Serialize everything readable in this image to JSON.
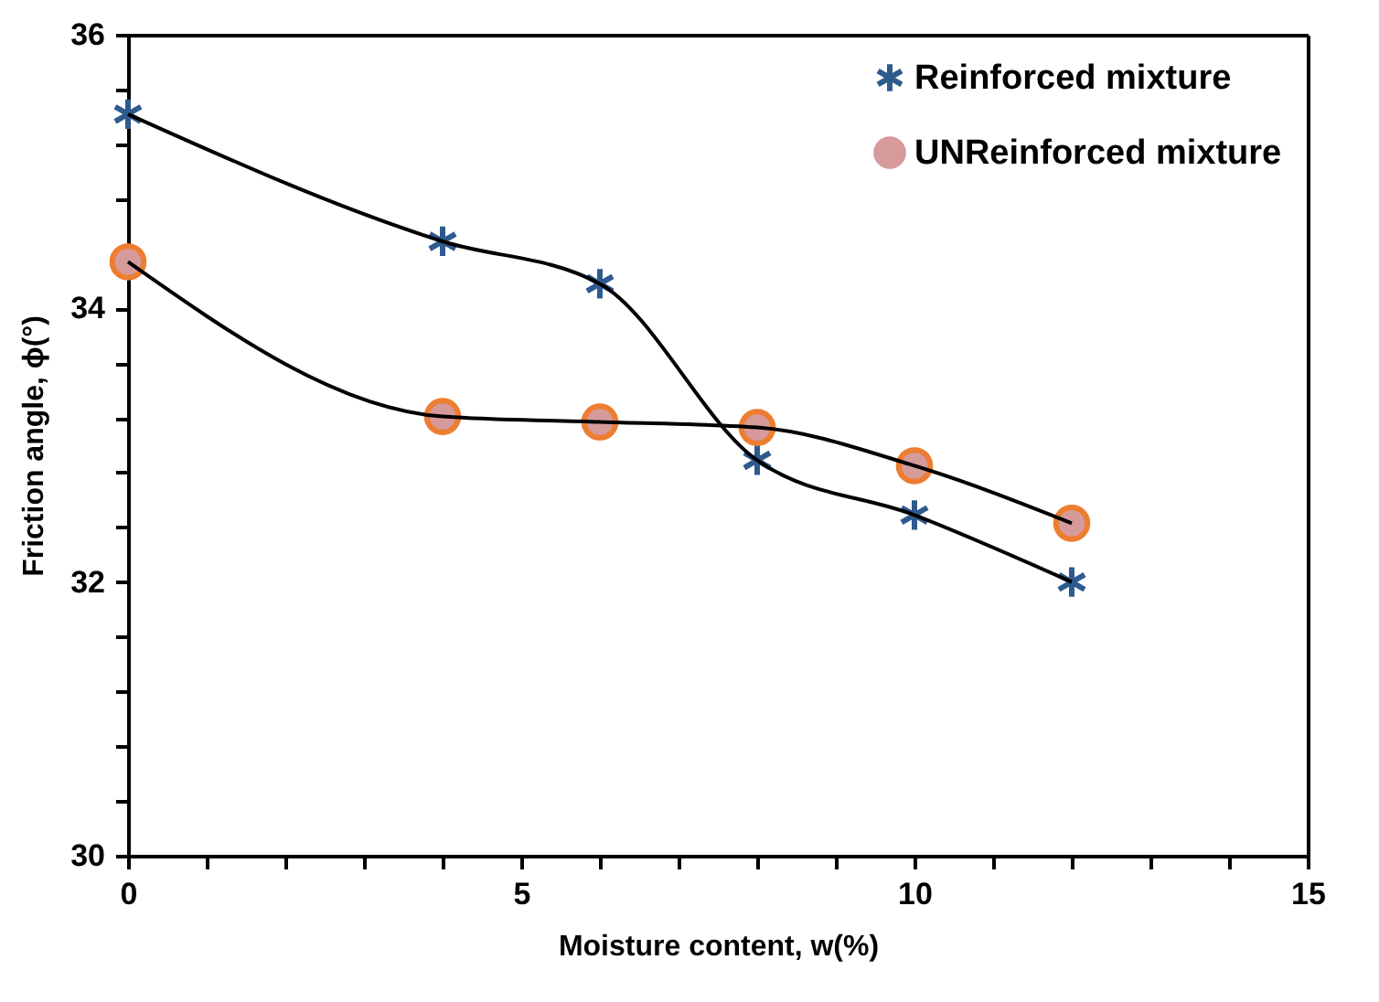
{
  "chart_data": {
    "type": "line",
    "xlabel": "Moisture content, w(%)",
    "ylabel": "Friction angle, ϕ(°)",
    "x": [
      0,
      4,
      6,
      8,
      10,
      12
    ],
    "series": [
      {
        "name": "Reinforced mixture",
        "color": "#2e5a8e",
        "marker": "cross",
        "values": [
          35.42,
          34.49,
          34.18,
          32.89,
          32.49,
          32.0
        ]
      },
      {
        "name": "UNReinforced mixture",
        "color": "#d69a9a",
        "marker": "circle",
        "values": [
          34.34,
          33.21,
          33.17,
          33.13,
          32.85,
          32.43
        ]
      }
    ],
    "xlim": [
      0,
      15
    ],
    "ylim": [
      30,
      36
    ],
    "xticks": [
      0,
      {
        "value": 1,
        "label": null
      },
      {
        "value": 2,
        "label": null
      },
      {
        "value": 3,
        "label": null
      },
      {
        "value": 4,
        "label": null
      },
      5,
      {
        "value": 6,
        "label": null
      },
      {
        "value": 7,
        "label": null
      },
      {
        "value": 8,
        "label": null
      },
      {
        "value": 9,
        "label": null
      },
      10,
      {
        "value": 11,
        "label": null
      },
      {
        "value": 12,
        "label": null
      },
      {
        "value": 13,
        "label": null
      },
      {
        "value": 14,
        "label": null
      },
      15
    ],
    "yticks": [
      30,
      {
        "value": 30.4,
        "label": null
      },
      {
        "value": 30.8,
        "label": null
      },
      {
        "value": 31.2,
        "label": null
      },
      {
        "value": 31.6,
        "label": null
      },
      32,
      {
        "value": 32.4,
        "label": null
      },
      {
        "value": 32.8,
        "label": null
      },
      {
        "value": 33.2,
        "label": null
      },
      {
        "value": 33.6,
        "label": null
      },
      34,
      {
        "value": 34.4,
        "label": null
      },
      {
        "value": 34.8,
        "label": null
      },
      {
        "value": 35.2,
        "label": null
      },
      {
        "value": 35.6,
        "label": null
      },
      36
    ],
    "grid": false,
    "legend": "top right",
    "line_style": "solid"
  }
}
